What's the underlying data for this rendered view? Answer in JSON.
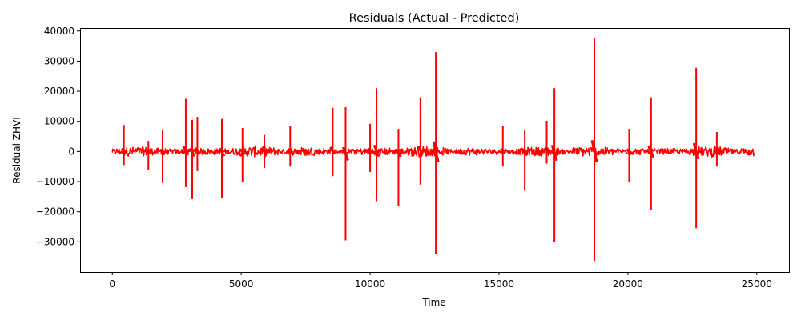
{
  "chart_data": {
    "type": "line",
    "title": "Residuals (Actual - Predicted)",
    "xlabel": "Time",
    "ylabel": "Residual ZHVI",
    "xlim": [
      -1250,
      26250
    ],
    "ylim": [
      -40000,
      41000
    ],
    "xticks": [
      0,
      5000,
      10000,
      15000,
      20000,
      25000
    ],
    "yticks": [
      -30000,
      -20000,
      -10000,
      0,
      10000,
      20000,
      30000,
      40000
    ],
    "xtick_labels": [
      "0",
      "5000",
      "10000",
      "15000",
      "20000",
      "25000"
    ],
    "ytick_labels": [
      "−30000",
      "−20000",
      "−10000",
      "0",
      "10000",
      "20000",
      "30000",
      "40000"
    ],
    "grid": false,
    "legend": "none",
    "series": [
      {
        "color": "#ff0000",
        "x_range": [
          0,
          24900
        ],
        "baseline_noise_amplitude": 1500,
        "spikes": [
          {
            "x": 450,
            "max": 8800,
            "min": -4500
          },
          {
            "x": 1400,
            "max": 3500,
            "min": -6000
          },
          {
            "x": 1950,
            "max": 7000,
            "min": -10500
          },
          {
            "x": 2850,
            "max": 17500,
            "min": -11800
          },
          {
            "x": 3100,
            "max": 10500,
            "min": -15800
          },
          {
            "x": 3300,
            "max": 11500,
            "min": -6500
          },
          {
            "x": 4250,
            "max": 10800,
            "min": -15300
          },
          {
            "x": 5050,
            "max": 7800,
            "min": -10200
          },
          {
            "x": 5900,
            "max": 5500,
            "min": -5500
          },
          {
            "x": 6900,
            "max": 8500,
            "min": -5000
          },
          {
            "x": 8550,
            "max": 14500,
            "min": -8200
          },
          {
            "x": 9050,
            "max": 14700,
            "min": -29500
          },
          {
            "x": 10000,
            "max": 9200,
            "min": -6800
          },
          {
            "x": 10250,
            "max": 21000,
            "min": -16500
          },
          {
            "x": 11100,
            "max": 7500,
            "min": -18000
          },
          {
            "x": 11950,
            "max": 18000,
            "min": -11000
          },
          {
            "x": 12550,
            "max": 33000,
            "min": -34000
          },
          {
            "x": 15150,
            "max": 8500,
            "min": -5000
          },
          {
            "x": 16000,
            "max": 7000,
            "min": -13000
          },
          {
            "x": 16850,
            "max": 10200,
            "min": -4000
          },
          {
            "x": 17150,
            "max": 21000,
            "min": -30000
          },
          {
            "x": 18700,
            "max": 37500,
            "min": -36300
          },
          {
            "x": 20050,
            "max": 7500,
            "min": -10000
          },
          {
            "x": 20900,
            "max": 18000,
            "min": -19500
          },
          {
            "x": 22650,
            "max": 27800,
            "min": -25500
          },
          {
            "x": 23450,
            "max": 6500,
            "min": -5000
          }
        ]
      }
    ]
  }
}
